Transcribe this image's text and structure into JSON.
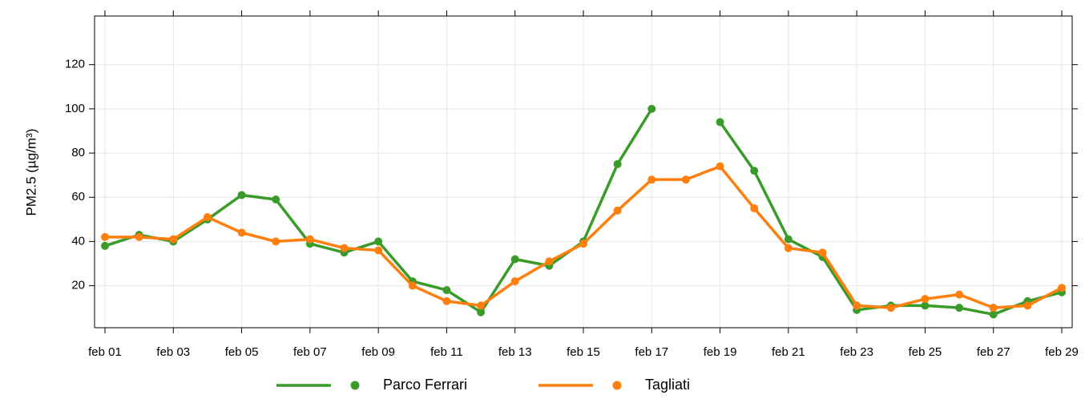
{
  "chart_data": {
    "type": "line",
    "y_label": "PM2.5 (µg/m³)",
    "categories": [
      "feb 01",
      null,
      "feb 03",
      null,
      "feb 05",
      null,
      "feb 07",
      null,
      "feb 09",
      null,
      "feb 11",
      null,
      "feb 13",
      null,
      "feb 15",
      null,
      "feb 17",
      null,
      "feb 19",
      null,
      "feb 21",
      null,
      "feb 23",
      null,
      "feb 25",
      null,
      "feb 27",
      null,
      "feb 29"
    ],
    "series": [
      {
        "name": "Parco Ferrari",
        "color": "#3a9b2a",
        "values": [
          38,
          43,
          40,
          50,
          61,
          59,
          39,
          35,
          40,
          22,
          18,
          8,
          32,
          29,
          40,
          75,
          100,
          null,
          94,
          72,
          41,
          33,
          9,
          11,
          11,
          10,
          7,
          13,
          17
        ]
      },
      {
        "name": "Tagliati",
        "color": "#ff7f0e",
        "values": [
          42,
          42,
          41,
          51,
          44,
          40,
          41,
          37,
          36,
          20,
          13,
          11,
          22,
          31,
          39,
          54,
          68,
          68,
          74,
          55,
          37,
          35,
          11,
          10,
          14,
          16,
          10,
          11,
          19
        ]
      }
    ],
    "ylim": [
      1,
      142
    ],
    "yticks": [
      20,
      40,
      60,
      80,
      100,
      120
    ],
    "grid": true,
    "legend": "bottom"
  }
}
